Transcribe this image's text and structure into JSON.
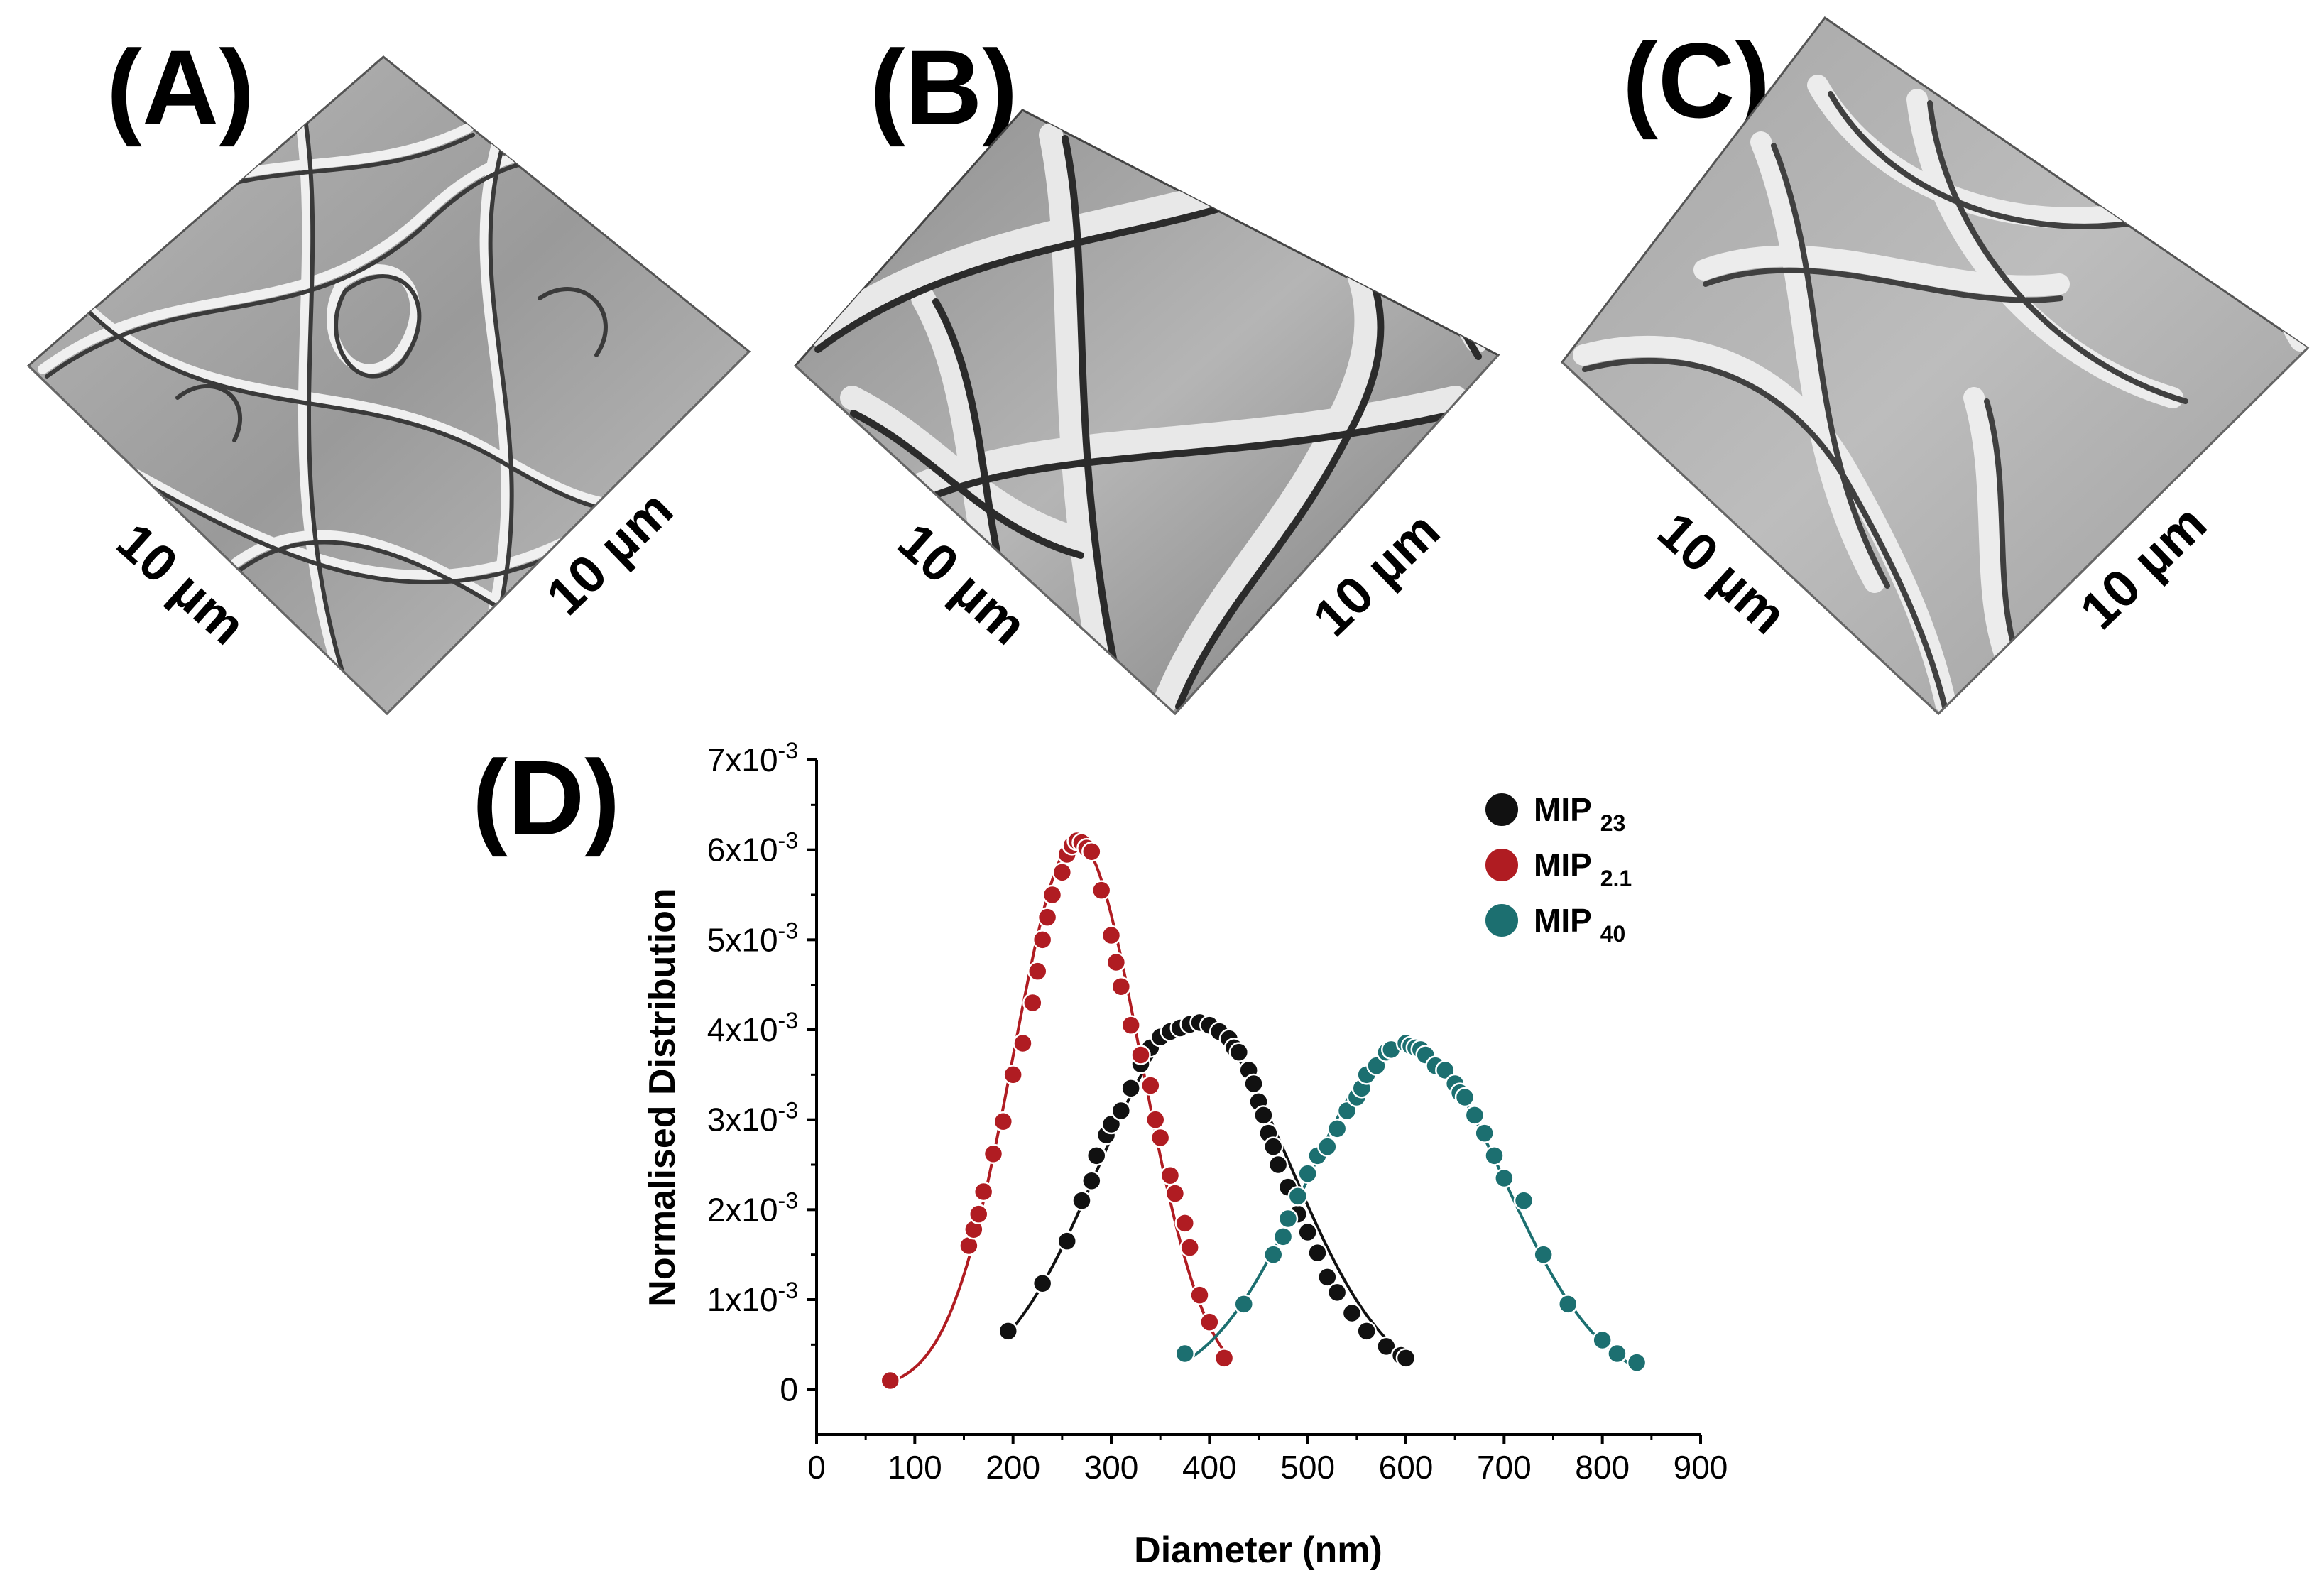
{
  "panels": {
    "a": {
      "label": "(A)",
      "scale_left": "10 µm",
      "scale_right": "10 µm"
    },
    "b": {
      "label": "(B)",
      "scale_left": "10 µm",
      "scale_right": "10 µm"
    },
    "c": {
      "label": "(C)",
      "scale_left": "10 µm",
      "scale_right": "10 µm"
    },
    "d": {
      "label": "(D)"
    }
  },
  "chart_data": {
    "type": "scatter",
    "xlabel": "Diameter (nm)",
    "ylabel": "Normalised Distribution",
    "xlim": [
      0,
      900
    ],
    "ylim": [
      -0.0005,
      0.007
    ],
    "x_ticks": [
      0,
      100,
      200,
      300,
      400,
      500,
      600,
      700,
      800,
      900
    ],
    "y_ticks": [
      {
        "value": 0,
        "base": "0",
        "exp": ""
      },
      {
        "value": 0.001,
        "base": "1x10",
        "exp": "-3"
      },
      {
        "value": 0.002,
        "base": "2x10",
        "exp": "-3"
      },
      {
        "value": 0.003,
        "base": "3x10",
        "exp": "-3"
      },
      {
        "value": 0.004,
        "base": "4x10",
        "exp": "-3"
      },
      {
        "value": 0.005,
        "base": "5x10",
        "exp": "-3"
      },
      {
        "value": 0.006,
        "base": "6x10",
        "exp": "-3"
      },
      {
        "value": 0.007,
        "base": "7x10",
        "exp": "-3"
      }
    ],
    "grid": false,
    "legend_position": "top-right",
    "series": [
      {
        "name": "MIP",
        "sub": "23",
        "color": "#111111",
        "fit": {
          "mean": 385,
          "sigma": 98,
          "peak": 0.00408
        },
        "points": [
          [
            195,
            0.00065
          ],
          [
            230,
            0.00118
          ],
          [
            255,
            0.00165
          ],
          [
            270,
            0.0021
          ],
          [
            280,
            0.00232
          ],
          [
            285,
            0.0026
          ],
          [
            295,
            0.00283
          ],
          [
            300,
            0.00295
          ],
          [
            310,
            0.0031
          ],
          [
            320,
            0.00335
          ],
          [
            330,
            0.00362
          ],
          [
            340,
            0.0038
          ],
          [
            350,
            0.00392
          ],
          [
            360,
            0.00398
          ],
          [
            370,
            0.00402
          ],
          [
            380,
            0.00406
          ],
          [
            390,
            0.00408
          ],
          [
            400,
            0.00405
          ],
          [
            410,
            0.00398
          ],
          [
            420,
            0.0039
          ],
          [
            425,
            0.0038
          ],
          [
            430,
            0.00375
          ],
          [
            440,
            0.00355
          ],
          [
            445,
            0.0034
          ],
          [
            450,
            0.0032
          ],
          [
            455,
            0.00305
          ],
          [
            460,
            0.00285
          ],
          [
            465,
            0.0027
          ],
          [
            470,
            0.0025
          ],
          [
            480,
            0.00225
          ],
          [
            490,
            0.00195
          ],
          [
            500,
            0.00175
          ],
          [
            510,
            0.00152
          ],
          [
            520,
            0.00125
          ],
          [
            530,
            0.00108
          ],
          [
            545,
            0.00085
          ],
          [
            560,
            0.00065
          ],
          [
            580,
            0.00048
          ],
          [
            595,
            0.00038
          ],
          [
            600,
            0.00035
          ]
        ]
      },
      {
        "name": "MIP",
        "sub": "2.1",
        "color": "#b01c22",
        "fit": {
          "mean": 265,
          "sigma": 65,
          "peak": 0.0061
        },
        "points": [
          [
            75,
            0.0001
          ],
          [
            155,
            0.0016
          ],
          [
            160,
            0.00178
          ],
          [
            165,
            0.00195
          ],
          [
            170,
            0.0022
          ],
          [
            180,
            0.00262
          ],
          [
            190,
            0.00298
          ],
          [
            200,
            0.0035
          ],
          [
            210,
            0.00385
          ],
          [
            220,
            0.0043
          ],
          [
            225,
            0.00465
          ],
          [
            230,
            0.005
          ],
          [
            235,
            0.00525
          ],
          [
            240,
            0.0055
          ],
          [
            250,
            0.00575
          ],
          [
            255,
            0.00595
          ],
          [
            260,
            0.00605
          ],
          [
            265,
            0.0061
          ],
          [
            270,
            0.00608
          ],
          [
            275,
            0.00602
          ],
          [
            280,
            0.00598
          ],
          [
            290,
            0.00555
          ],
          [
            300,
            0.00505
          ],
          [
            305,
            0.00475
          ],
          [
            310,
            0.00448
          ],
          [
            320,
            0.00405
          ],
          [
            330,
            0.00372
          ],
          [
            340,
            0.00338
          ],
          [
            345,
            0.003
          ],
          [
            350,
            0.0028
          ],
          [
            360,
            0.00238
          ],
          [
            365,
            0.00218
          ],
          [
            375,
            0.00185
          ],
          [
            380,
            0.00158
          ],
          [
            390,
            0.00105
          ],
          [
            400,
            0.00075
          ],
          [
            415,
            0.00035
          ]
        ]
      },
      {
        "name": "MIP",
        "sub": "40",
        "color": "#1c6f70",
        "fit": {
          "mean": 600,
          "sigma": 100,
          "peak": 0.00385
        },
        "points": [
          [
            375,
            0.0004
          ],
          [
            435,
            0.00095
          ],
          [
            465,
            0.0015
          ],
          [
            475,
            0.0017
          ],
          [
            480,
            0.0019
          ],
          [
            490,
            0.00215
          ],
          [
            500,
            0.0024
          ],
          [
            510,
            0.0026
          ],
          [
            520,
            0.0027
          ],
          [
            530,
            0.0029
          ],
          [
            540,
            0.0031
          ],
          [
            550,
            0.00325
          ],
          [
            555,
            0.00335
          ],
          [
            560,
            0.0035
          ],
          [
            570,
            0.0036
          ],
          [
            580,
            0.00375
          ],
          [
            585,
            0.00378
          ],
          [
            600,
            0.00385
          ],
          [
            605,
            0.00382
          ],
          [
            610,
            0.0038
          ],
          [
            615,
            0.00378
          ],
          [
            620,
            0.00372
          ],
          [
            630,
            0.0036
          ],
          [
            640,
            0.00355
          ],
          [
            650,
            0.0034
          ],
          [
            655,
            0.0033
          ],
          [
            660,
            0.00325
          ],
          [
            670,
            0.00305
          ],
          [
            680,
            0.00285
          ],
          [
            690,
            0.0026
          ],
          [
            700,
            0.00235
          ],
          [
            720,
            0.0021
          ],
          [
            740,
            0.0015
          ],
          [
            765,
            0.00095
          ],
          [
            800,
            0.00055
          ],
          [
            815,
            0.0004
          ],
          [
            835,
            0.0003
          ]
        ]
      }
    ]
  }
}
